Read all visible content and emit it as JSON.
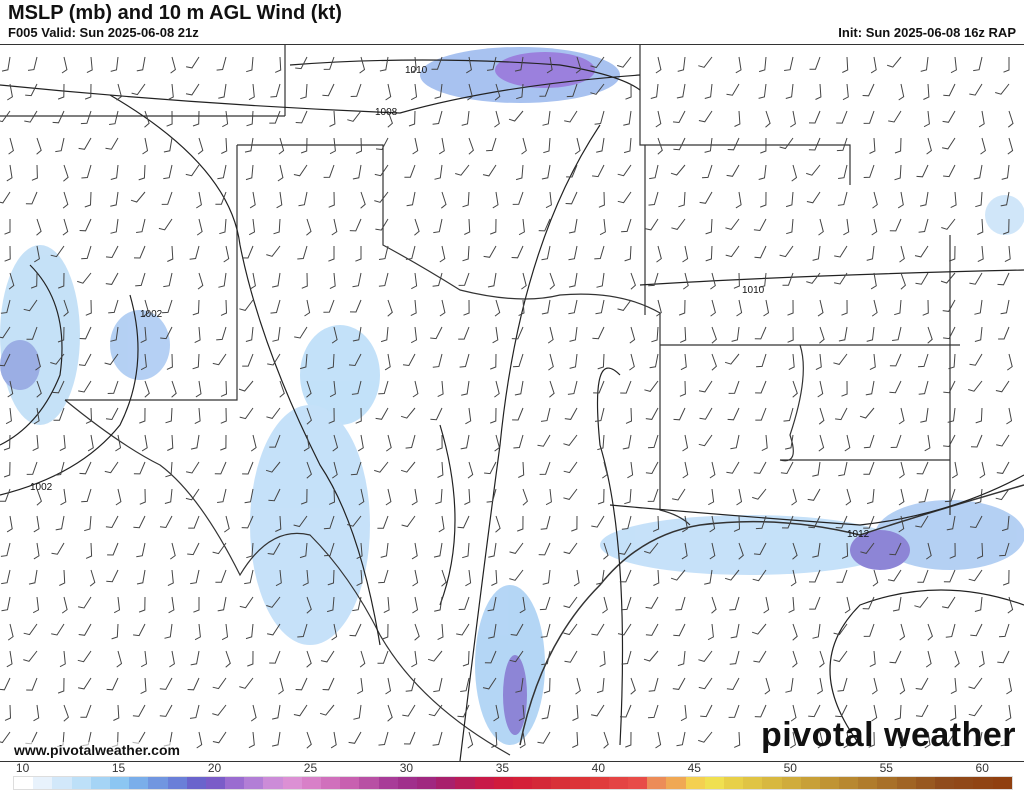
{
  "header": {
    "title": "MSLP (mb) and 10 m AGL Wind (kt)",
    "valid": "F005 Valid: Sun 2025-06-08 21z",
    "init": "Init: Sun 2025-06-08 16z RAP"
  },
  "footer": {
    "website": "www.pivotalweather.com",
    "logo": "pivotal weather"
  },
  "map": {
    "isobar_labels": [
      "1010",
      "1008",
      "1002",
      "1002",
      "1010",
      "1012"
    ],
    "isobar_color": "#222222",
    "boundary_color": "#333333"
  },
  "colorbar": {
    "units": "kt",
    "range": [
      10,
      62
    ],
    "tick_labels": [
      "10",
      "15",
      "20",
      "25",
      "30",
      "35",
      "40",
      "45",
      "50",
      "55",
      "60"
    ],
    "colors": [
      "#ffffff",
      "#e8f2fc",
      "#d2e8fa",
      "#bde0f8",
      "#a5d4f5",
      "#8cc6f2",
      "#7aaeea",
      "#7196e0",
      "#6a7fd8",
      "#6a64cc",
      "#7a5cc8",
      "#9a6cd0",
      "#b27ed6",
      "#cc8cd8",
      "#dc90d4",
      "#d880c8",
      "#d070bc",
      "#c860b0",
      "#b850a4",
      "#a83c98",
      "#a0308c",
      "#a02880",
      "#a8206c",
      "#b81c58",
      "#c81a48",
      "#d01c3c",
      "#d42038",
      "#d42838",
      "#d83038",
      "#dc3438",
      "#e03c3c",
      "#e44444",
      "#e84c48",
      "#ec8c58",
      "#f0a854",
      "#f4d050",
      "#f0e050",
      "#e8d048",
      "#e0c444",
      "#d8b840",
      "#d0ac3c",
      "#c8a038",
      "#c09434",
      "#b88830",
      "#b07c2c",
      "#a87028",
      "#a06424",
      "#985820",
      "#904c1c",
      "#904818",
      "#904414",
      "#904010"
    ]
  }
}
